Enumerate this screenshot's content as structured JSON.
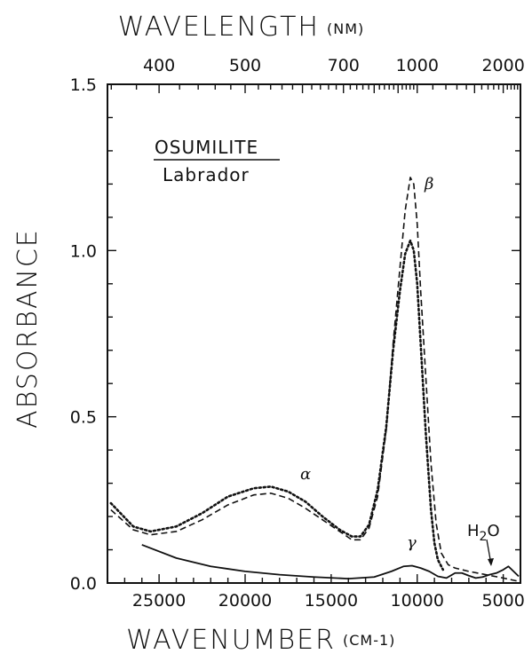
{
  "chart_data": {
    "type": "line",
    "title": "",
    "panel_title": "OSUMILITE",
    "panel_subtitle": "Labrador",
    "xlabel": "WAVENUMBER",
    "xlabel_unit": "(CM-1)",
    "x2label": "WAVELENGTH",
    "x2label_unit": "(NM)",
    "ylabel": "ABSORBANCE",
    "xlim": [
      28000,
      4000
    ],
    "ylim": [
      0,
      1.5
    ],
    "x_ticks": [
      25000,
      20000,
      15000,
      10000,
      5000
    ],
    "x_tick_labels": [
      "25000",
      "20000",
      "15000",
      "10000",
      "5000"
    ],
    "y_ticks": [
      0,
      0.5,
      1.0,
      1.5
    ],
    "y_tick_labels": [
      "0.0",
      "0.5",
      "1.0",
      "1.5"
    ],
    "top_ticks_nm": [
      400,
      500,
      700,
      1000,
      2000
    ],
    "top_tick_labels": [
      "400",
      "500",
      "700",
      "1000",
      "2000"
    ],
    "grid": false,
    "legend": "none",
    "series": [
      {
        "name": "α",
        "style": "dotted",
        "x": [
          27800,
          26500,
          25500,
          24000,
          22500,
          21000,
          19500,
          18500,
          17500,
          16500,
          15500,
          14500,
          13800,
          13300,
          12800,
          12300,
          11800,
          11400,
          11000,
          10700,
          10400,
          10200,
          10000,
          9800,
          9500,
          9200,
          9000,
          8800,
          8500
        ],
        "y": [
          0.24,
          0.17,
          0.155,
          0.17,
          0.21,
          0.26,
          0.285,
          0.29,
          0.275,
          0.245,
          0.2,
          0.16,
          0.14,
          0.14,
          0.175,
          0.28,
          0.47,
          0.7,
          0.88,
          0.99,
          1.03,
          1.0,
          0.9,
          0.72,
          0.45,
          0.22,
          0.12,
          0.07,
          0.04
        ]
      },
      {
        "name": "β",
        "style": "dashed",
        "x": [
          27800,
          26500,
          25500,
          24000,
          22500,
          21000,
          19500,
          18500,
          17500,
          16500,
          15500,
          14500,
          13800,
          13300,
          12800,
          12300,
          11800,
          11400,
          11000,
          10700,
          10400,
          10200,
          10000,
          9800,
          9500,
          9200,
          8900,
          8600,
          8200,
          7800,
          7000,
          6000,
          5000,
          4100
        ],
        "y": [
          0.22,
          0.16,
          0.145,
          0.155,
          0.19,
          0.235,
          0.265,
          0.27,
          0.255,
          0.225,
          0.19,
          0.155,
          0.13,
          0.13,
          0.165,
          0.26,
          0.46,
          0.72,
          0.95,
          1.12,
          1.22,
          1.2,
          1.08,
          0.88,
          0.62,
          0.36,
          0.18,
          0.09,
          0.055,
          0.045,
          0.035,
          0.025,
          0.015,
          0.005
        ]
      },
      {
        "name": "γ",
        "style": "solid",
        "x": [
          26000,
          24000,
          22000,
          20000,
          18000,
          16000,
          14000,
          12500,
          11500,
          10800,
          10300,
          9800,
          9300,
          8800,
          8300,
          7800,
          7400,
          7000,
          6600,
          6200,
          5800,
          5400,
          5000,
          4700,
          4400,
          4100
        ],
        "y": [
          0.115,
          0.075,
          0.05,
          0.035,
          0.025,
          0.018,
          0.013,
          0.018,
          0.035,
          0.05,
          0.052,
          0.045,
          0.035,
          0.02,
          0.015,
          0.03,
          0.03,
          0.022,
          0.015,
          0.018,
          0.025,
          0.03,
          0.04,
          0.05,
          0.035,
          0.02
        ]
      }
    ],
    "annotations": [
      {
        "text": "α",
        "x": 16500,
        "y": 0.31
      },
      {
        "text": "β",
        "x": 9000,
        "y": 1.23
      },
      {
        "text": "γ",
        "x": 10300,
        "y": 0.085
      },
      {
        "text": "H2O",
        "x": 5000,
        "y": 0.12
      }
    ]
  }
}
